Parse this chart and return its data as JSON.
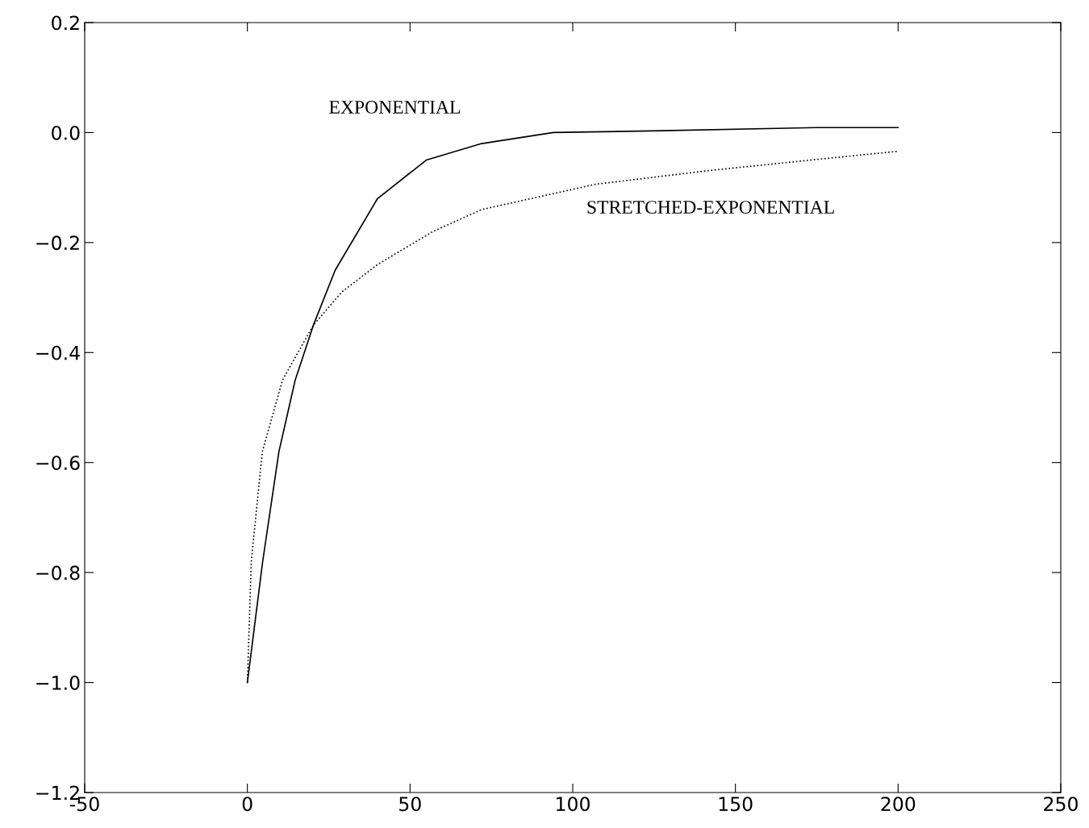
{
  "chart_data": {
    "type": "line",
    "series": [
      {
        "name": "EXPONENTIAL",
        "color": "#000000",
        "line_style": "solid",
        "x": [
          0,
          4.7,
          9.7,
          14.7,
          20.3,
          27,
          40,
          55,
          72,
          94,
          124,
          175,
          200
        ],
        "values": [
          -1.0,
          -0.78,
          -0.58,
          -0.45,
          -0.35,
          -0.25,
          -0.12,
          -0.05,
          -0.02,
          0.0,
          0.003,
          0.009,
          0.009
        ]
      },
      {
        "name": "STRETCHED-EXPONENTIAL",
        "color": "#000000",
        "line_style": "dotted",
        "x": [
          0,
          1.2,
          4.6,
          10.8,
          20.3,
          29,
          40,
          57,
          72,
          107,
          142,
          178,
          200
        ],
        "values": [
          -1.0,
          -0.78,
          -0.58,
          -0.45,
          -0.35,
          -0.29,
          -0.24,
          -0.18,
          -0.14,
          -0.094,
          -0.069,
          -0.047,
          -0.034
        ]
      }
    ],
    "xlim": [
      -50,
      250
    ],
    "xticks": [
      -50,
      0,
      50,
      100,
      150,
      200,
      250
    ],
    "ylim": [
      -1.2,
      0.2
    ],
    "yticks": [
      {
        "value": -1.2,
        "label": "−1.2"
      },
      {
        "value": -1.0,
        "label": "−1.0"
      },
      {
        "value": -0.8,
        "label": "−0.8"
      },
      {
        "value": -0.6,
        "label": "−0.6"
      },
      {
        "value": -0.4,
        "label": "−0.4"
      },
      {
        "value": -0.2,
        "label": "−0.2"
      },
      {
        "value": 0.0,
        "label": "0.0"
      },
      0.2
    ],
    "grid": false,
    "marker": "none",
    "legend": false
  }
}
